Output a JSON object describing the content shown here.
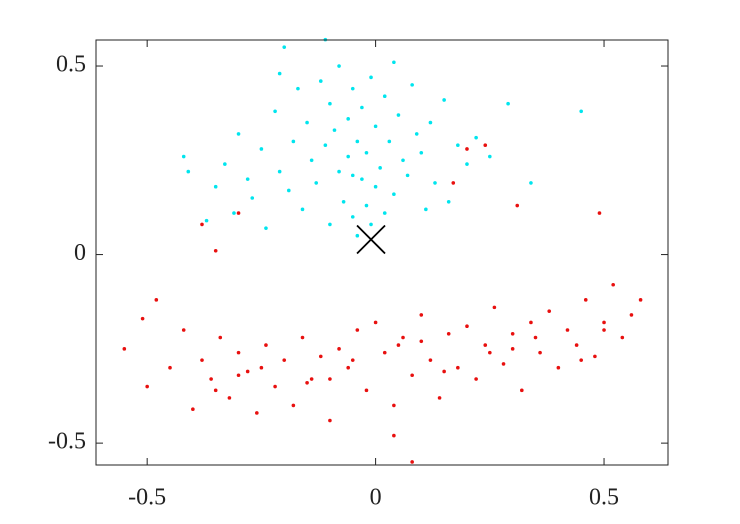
{
  "chart_data": {
    "type": "scatter",
    "xlim": [
      -0.612,
      0.64
    ],
    "ylim": [
      -0.558,
      0.569
    ],
    "xticks": [
      -0.5,
      0,
      0.5
    ],
    "yticks": [
      -0.5,
      0,
      0.5
    ],
    "grid": false,
    "series": [
      {
        "color": "#00e5ee",
        "marker": "dot",
        "x": [
          -0.42,
          -0.41,
          -0.37,
          -0.35,
          -0.33,
          -0.31,
          -0.3,
          -0.28,
          -0.27,
          -0.25,
          -0.24,
          -0.22,
          -0.21,
          -0.2,
          -0.19,
          -0.18,
          -0.17,
          -0.16,
          -0.15,
          -0.14,
          -0.13,
          -0.12,
          -0.11,
          -0.1,
          -0.1,
          -0.09,
          -0.08,
          -0.08,
          -0.07,
          -0.06,
          -0.06,
          -0.05,
          -0.05,
          -0.04,
          -0.04,
          -0.03,
          -0.03,
          -0.02,
          -0.02,
          -0.01,
          -0.01,
          0.0,
          0.0,
          0.01,
          0.02,
          0.02,
          0.03,
          0.04,
          0.05,
          0.06,
          0.07,
          0.08,
          0.09,
          0.1,
          0.12,
          0.13,
          0.15,
          0.16,
          0.18,
          0.2,
          0.22,
          0.25,
          0.29,
          0.34,
          0.45,
          -0.21,
          -0.11,
          -0.05,
          0.04,
          0.11
        ],
        "values": [
          0.26,
          0.22,
          0.09,
          0.18,
          0.24,
          0.11,
          0.32,
          0.2,
          0.15,
          0.28,
          0.07,
          0.38,
          0.22,
          0.55,
          0.17,
          0.3,
          0.44,
          0.12,
          0.35,
          0.25,
          0.19,
          0.46,
          0.29,
          0.4,
          0.08,
          0.33,
          0.22,
          0.5,
          0.14,
          0.36,
          0.26,
          0.44,
          0.1,
          0.3,
          0.05,
          0.2,
          0.39,
          0.13,
          0.27,
          0.08,
          0.47,
          0.18,
          0.34,
          0.23,
          0.42,
          0.11,
          0.3,
          0.16,
          0.37,
          0.25,
          0.21,
          0.45,
          0.32,
          0.27,
          0.35,
          0.19,
          0.41,
          0.14,
          0.29,
          0.24,
          0.31,
          0.26,
          0.4,
          0.19,
          0.38,
          0.48,
          0.57,
          0.21,
          0.51,
          0.12
        ]
      },
      {
        "color": "#e8100f",
        "marker": "dot",
        "x": [
          -0.55,
          -0.51,
          -0.5,
          -0.48,
          -0.45,
          -0.42,
          -0.4,
          -0.38,
          -0.36,
          -0.34,
          -0.32,
          -0.3,
          -0.28,
          -0.26,
          -0.24,
          -0.22,
          -0.2,
          -0.18,
          -0.16,
          -0.14,
          -0.12,
          -0.1,
          -0.08,
          -0.06,
          -0.04,
          -0.02,
          0.0,
          0.02,
          0.04,
          0.06,
          0.08,
          0.1,
          0.12,
          0.14,
          0.16,
          0.18,
          0.2,
          0.22,
          0.24,
          0.26,
          0.28,
          0.3,
          0.32,
          0.34,
          0.36,
          0.38,
          0.4,
          0.42,
          0.44,
          0.46,
          0.48,
          0.5,
          0.52,
          0.54,
          0.56,
          0.58,
          -0.35,
          -0.25,
          -0.15,
          -0.05,
          0.05,
          0.15,
          0.25,
          0.35,
          0.45,
          -0.3,
          -0.1,
          0.1,
          0.3,
          0.5,
          0.08,
          0.04,
          -0.38,
          -0.3,
          0.2,
          0.24,
          0.31,
          0.49,
          -0.35,
          0.17
        ],
        "values": [
          -0.25,
          -0.17,
          -0.35,
          -0.12,
          -0.3,
          -0.2,
          -0.41,
          -0.28,
          -0.33,
          -0.22,
          -0.38,
          -0.26,
          -0.31,
          -0.42,
          -0.24,
          -0.35,
          -0.28,
          -0.4,
          -0.22,
          -0.33,
          -0.27,
          -0.44,
          -0.25,
          -0.3,
          -0.2,
          -0.36,
          -0.18,
          -0.26,
          -0.4,
          -0.22,
          -0.32,
          -0.16,
          -0.28,
          -0.38,
          -0.21,
          -0.3,
          -0.19,
          -0.33,
          -0.24,
          -0.14,
          -0.29,
          -0.21,
          -0.36,
          -0.18,
          -0.26,
          -0.15,
          -0.3,
          -0.2,
          -0.24,
          -0.12,
          -0.27,
          -0.18,
          -0.08,
          -0.22,
          -0.16,
          -0.12,
          -0.36,
          -0.3,
          -0.34,
          -0.28,
          -0.24,
          -0.31,
          -0.26,
          -0.22,
          -0.28,
          -0.32,
          -0.33,
          -0.23,
          -0.25,
          -0.2,
          -0.55,
          -0.48,
          0.08,
          0.11,
          0.28,
          0.29,
          0.13,
          0.11,
          0.01,
          0.19
        ]
      },
      {
        "color": "#000000",
        "marker": "x",
        "x": [
          -0.01
        ],
        "values": [
          0.04
        ]
      }
    ]
  }
}
